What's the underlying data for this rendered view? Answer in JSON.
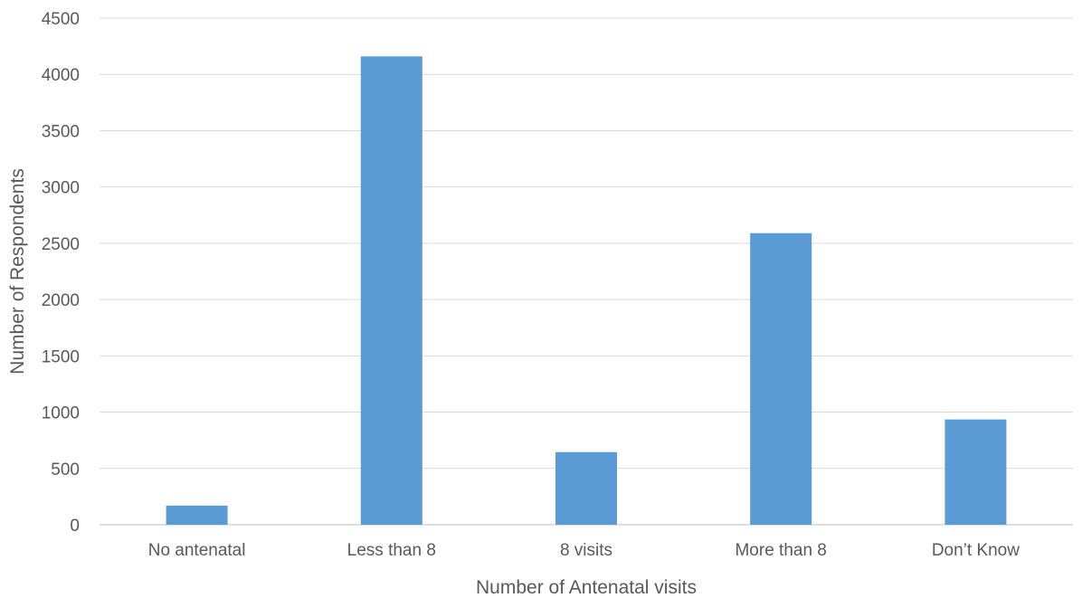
{
  "chart_data": {
    "type": "bar",
    "title": "",
    "xlabel": "Number of Antenatal visits",
    "ylabel": "Number of Respondents",
    "categories": [
      "No antenatal",
      "Less than 8",
      "8 visits",
      "More than 8",
      "Don’t Know"
    ],
    "values": [
      170,
      4160,
      645,
      2590,
      935
    ],
    "ylim": [
      0,
      4500
    ],
    "yticks": [
      0,
      500,
      1000,
      1500,
      2000,
      2500,
      3000,
      3500,
      4000,
      4500
    ],
    "grid": true,
    "legend": "none",
    "colors": {
      "bar": "#5b9bd5",
      "grid": "#d9d9d9",
      "text": "#595959"
    }
  }
}
